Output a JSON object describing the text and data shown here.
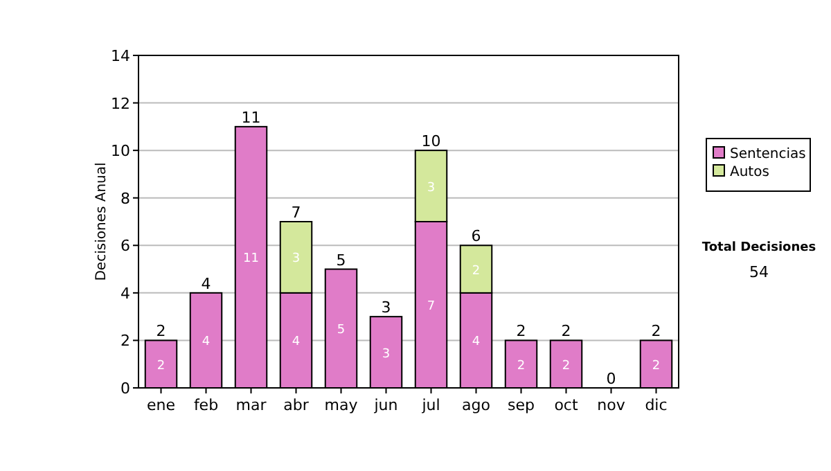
{
  "chart_data": {
    "type": "bar",
    "stacked": true,
    "ylabel": "Decisiones Anual",
    "categories": [
      "ene",
      "feb",
      "mar",
      "abr",
      "may",
      "jun",
      "jul",
      "ago",
      "sep",
      "oct",
      "nov",
      "dic"
    ],
    "series": [
      {
        "name": "Sentencias",
        "color": "#e07cc8",
        "values": [
          2,
          4,
          11,
          4,
          5,
          3,
          7,
          4,
          2,
          2,
          0,
          2
        ],
        "value_labels": [
          "2",
          "4",
          "11",
          "4",
          "5",
          "3",
          "7",
          "4",
          "2",
          "2",
          null,
          "2"
        ]
      },
      {
        "name": "Autos",
        "color": "#d4e89c",
        "values": [
          0,
          0,
          0,
          3,
          0,
          0,
          3,
          2,
          0,
          0,
          0,
          0
        ],
        "value_labels": [
          null,
          null,
          null,
          "3",
          null,
          null,
          "3",
          "2",
          null,
          null,
          null,
          null
        ]
      }
    ],
    "totals": [
      "2",
      "4",
      "11",
      "7",
      "5",
      "3",
      "10",
      "6",
      "2",
      "2",
      "0",
      "2"
    ],
    "ylim": [
      0,
      14
    ],
    "yticks": [
      0,
      2,
      4,
      6,
      8,
      10,
      12,
      14
    ],
    "grid": "y",
    "legend": "right",
    "annotations": [
      "Total Decisiones",
      "54"
    ]
  }
}
